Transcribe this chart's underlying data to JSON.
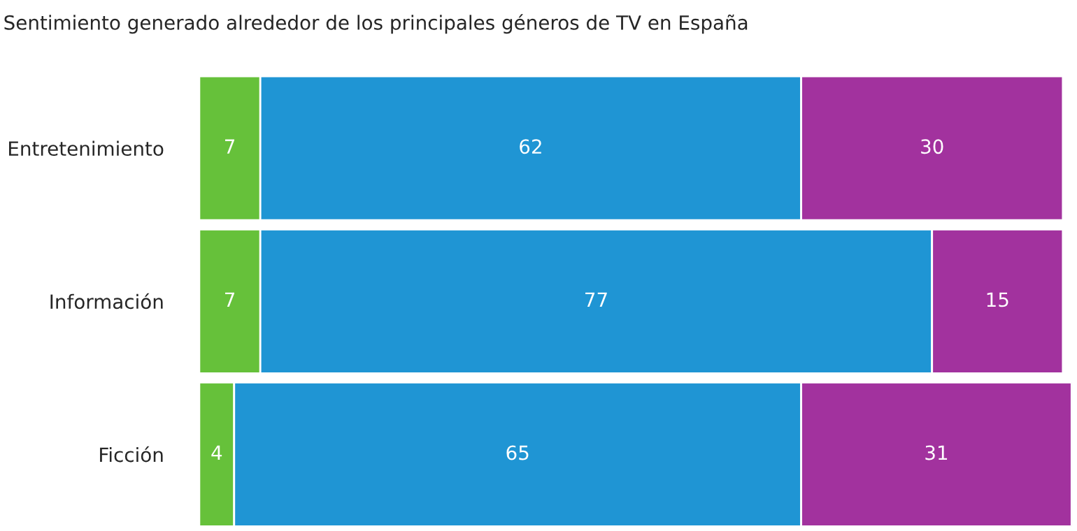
{
  "chart_data": {
    "type": "bar",
    "orientation": "horizontal",
    "stacked": true,
    "data_labels": true,
    "title": "Sentimiento generado alrededor de los principales géneros de TV en España",
    "categories": [
      "Entretenimiento",
      "Información",
      "Ficción"
    ],
    "series": [
      {
        "color": "#66c13a",
        "values": [
          7,
          7,
          4
        ]
      },
      {
        "color": "#1f95d4",
        "values": [
          62,
          77,
          65
        ]
      },
      {
        "color": "#a2329e",
        "values": [
          30,
          15,
          31
        ]
      }
    ],
    "grid": false,
    "legend": false
  }
}
